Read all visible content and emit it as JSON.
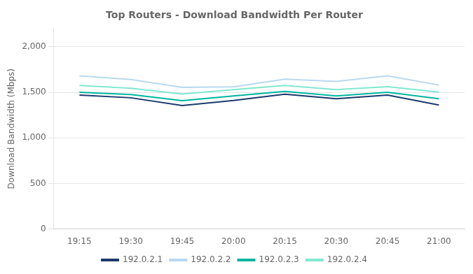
{
  "chart_data": {
    "type": "line",
    "title": "Top Routers - Download Bandwidth Per Router",
    "y_label": "Download Bandwidth (Mbps)",
    "categories": [
      "19:15",
      "19:30",
      "19:45",
      "20:00",
      "20:15",
      "20:30",
      "20:45",
      "21:00"
    ],
    "series": [
      {
        "name": "192.0.2.1",
        "color": "#1b3a6b",
        "values": [
          1470,
          1440,
          1355,
          1410,
          1480,
          1430,
          1470,
          1360
        ]
      },
      {
        "name": "192.0.2.2",
        "color": "#b8d9f0",
        "values": [
          1680,
          1640,
          1555,
          1560,
          1645,
          1620,
          1680,
          1580
        ]
      },
      {
        "name": "192.0.2.3",
        "color": "#00b5a0",
        "values": [
          1500,
          1475,
          1408,
          1460,
          1510,
          1460,
          1500,
          1430
        ]
      },
      {
        "name": "192.0.2.4",
        "color": "#80e8d0",
        "values": [
          1575,
          1545,
          1482,
          1530,
          1575,
          1530,
          1562,
          1502
        ]
      }
    ],
    "ylim": [
      0,
      2200
    ],
    "yticks": [
      0,
      500,
      {
        "value": 1000,
        "label": "1,000"
      },
      {
        "value": 1500,
        "label": "1,500"
      },
      {
        "value": 2000,
        "label": "2,000"
      }
    ],
    "grid": true,
    "legend": "bottom"
  }
}
